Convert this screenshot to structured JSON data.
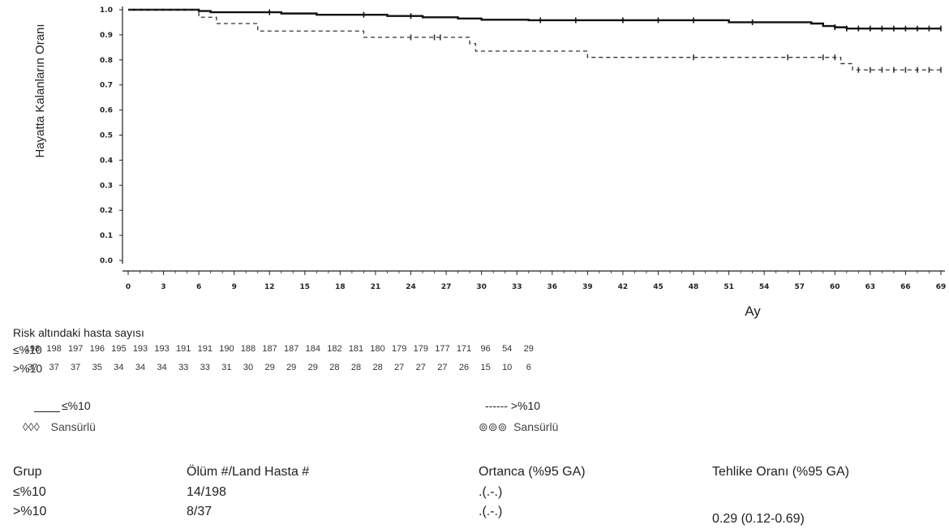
{
  "chart_data": {
    "type": "line",
    "ylabel": "Hayatta Kalanların Oranı",
    "xlabel": "Ay",
    "ylim": [
      0,
      1
    ],
    "xlim": [
      0,
      69
    ],
    "x_ticks": [
      "0",
      "3",
      "6",
      "9",
      "12",
      "15",
      "18",
      "21",
      "24",
      "27",
      "30",
      "33",
      "36",
      "39",
      "42",
      "45",
      "48",
      "51",
      "54",
      "57",
      "60",
      "63",
      "66",
      "69"
    ],
    "y_ticks": [
      "0.0",
      "0.1",
      "0.2",
      "0.3",
      "0.4",
      "0.5",
      "0.6",
      "0.7",
      "0.8",
      "0.9",
      "1.0"
    ],
    "series": [
      {
        "name": "≤%10",
        "style": "solid",
        "color": "#111111",
        "steps": [
          [
            0,
            1.0
          ],
          [
            6,
            0.995
          ],
          [
            7,
            0.99
          ],
          [
            13,
            0.985
          ],
          [
            16,
            0.98
          ],
          [
            22,
            0.975
          ],
          [
            25,
            0.97
          ],
          [
            28,
            0.965
          ],
          [
            30,
            0.96
          ],
          [
            34,
            0.958
          ],
          [
            51,
            0.95
          ],
          [
            58,
            0.945
          ],
          [
            59,
            0.935
          ],
          [
            60,
            0.93
          ],
          [
            61,
            0.925
          ],
          [
            69,
            0.925
          ]
        ],
        "censored": [
          12,
          20,
          24,
          35,
          38,
          42,
          45,
          48,
          53,
          60,
          61,
          62,
          63,
          64,
          65,
          66,
          67,
          68,
          69
        ]
      },
      {
        "name": ">%10",
        "style": "dashed",
        "color": "#333333",
        "steps": [
          [
            0,
            1.0
          ],
          [
            6,
            0.97
          ],
          [
            7.5,
            0.945
          ],
          [
            11,
            0.915
          ],
          [
            20,
            0.89
          ],
          [
            29,
            0.865
          ],
          [
            29.5,
            0.835
          ],
          [
            39,
            0.81
          ],
          [
            57.5,
            0.81
          ],
          [
            60.5,
            0.785
          ],
          [
            61.5,
            0.76
          ],
          [
            69,
            0.76
          ]
        ],
        "censored": [
          24,
          26,
          26.5,
          48,
          56,
          59,
          60,
          62,
          63,
          64,
          65,
          66,
          67,
          68,
          69
        ]
      }
    ]
  },
  "risk_table": {
    "title": "Risk altındaki hasta sayısı",
    "rows": [
      {
        "label": "≤%10",
        "values": [
          "198",
          "198",
          "197",
          "196",
          "195",
          "193",
          "193",
          "191",
          "191",
          "190",
          "188",
          "187",
          "187",
          "184",
          "182",
          "181",
          "180",
          "179",
          "179",
          "177",
          "171",
          "96",
          "54",
          "29"
        ]
      },
      {
        "label": ">%10",
        "values": [
          "37",
          "37",
          "37",
          "35",
          "34",
          "34",
          "34",
          "33",
          "33",
          "31",
          "30",
          "29",
          "29",
          "29",
          "28",
          "28",
          "28",
          "27",
          "27",
          "27",
          "26",
          "15",
          "10",
          "6"
        ]
      }
    ]
  },
  "legend": {
    "group1": {
      "label": "≤%10",
      "censor_symbol": "◊◊◊",
      "censor_label": "Sansürlü"
    },
    "group2": {
      "label": "------ >%10",
      "censor_symbol": "⊚⊚⊚",
      "censor_label": "Sansürlü"
    }
  },
  "summary_table": {
    "headers": [
      "Grup",
      "Ölüm #/Land Hasta #",
      "Ortanca (%95 GA)",
      "Tehlike Oranı (%95 GA)"
    ],
    "rows": [
      {
        "group": "≤%10",
        "deaths": "14/198",
        "median": ".(.-.)"
      },
      {
        "group": ">%10",
        "deaths": "8/37",
        "median": ".(.-.)"
      }
    ],
    "hazard_ratio": "0.29 (0.12-0.69)"
  }
}
